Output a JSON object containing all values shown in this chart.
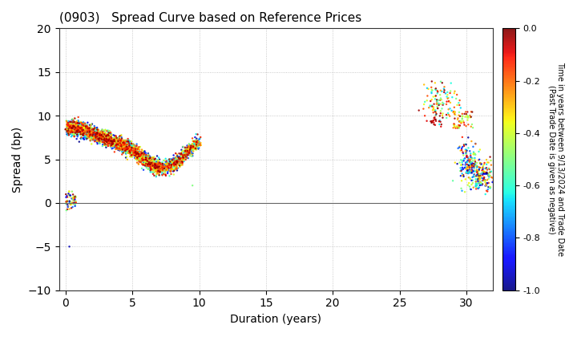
{
  "title": "(0903)   Spread Curve based on Reference Prices",
  "xlabel": "Duration (years)",
  "ylabel": "Spread (bp)",
  "colorbar_label": "Time in years between 9/13/2024 and Trade Date\n(Past Trade Date is given as negative)",
  "xlim": [
    -0.5,
    32
  ],
  "ylim": [
    -10,
    20
  ],
  "xticks": [
    0,
    5,
    10,
    15,
    20,
    25,
    30
  ],
  "yticks": [
    -10,
    -5,
    0,
    5,
    10,
    15,
    20
  ],
  "clim": [
    -1.0,
    0.0
  ],
  "cticks": [
    0.0,
    -0.2,
    -0.4,
    -0.6,
    -0.8,
    -1.0
  ],
  "background_color": "#ffffff",
  "point_size": 3,
  "figsize": [
    7.2,
    4.2
  ],
  "dpi": 100
}
